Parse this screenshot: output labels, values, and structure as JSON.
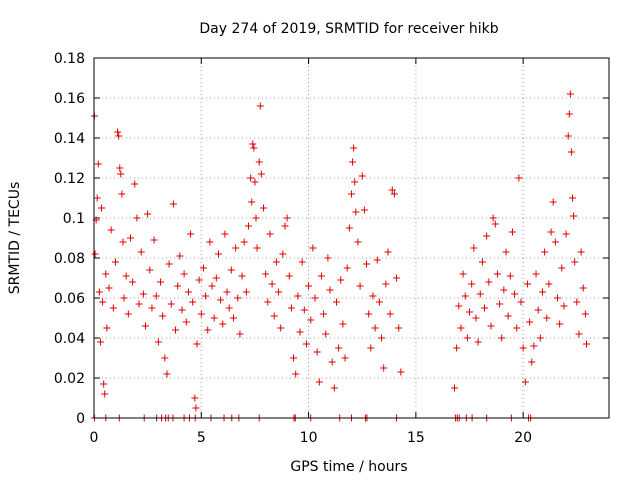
{
  "chart_data": {
    "type": "scatter",
    "title": "Day 274 of 2019, SRMTID for receiver hikb",
    "xlabel": "GPS time / hours",
    "ylabel": "SRMTID / TECUs",
    "xlim": [
      0,
      24
    ],
    "ylim": [
      0,
      0.18
    ],
    "xticks": [
      "0",
      "5",
      "10",
      "15",
      "20"
    ],
    "yticks": [
      "0",
      "0.02",
      "0.04",
      "0.06",
      "0.08",
      "0.1",
      "0.12",
      "0.14",
      "0.16",
      "0.18"
    ],
    "grid": true,
    "marker": "plus",
    "color": "#e00000",
    "series": [
      {
        "points": [
          [
            0.02,
            0.151
          ],
          [
            0.05,
            0.082
          ],
          [
            0.1,
            0.099
          ],
          [
            0.15,
            0.11
          ],
          [
            0.2,
            0.127
          ],
          [
            0.25,
            0.063
          ],
          [
            0.3,
            0.038
          ],
          [
            0.35,
            0.105
          ],
          [
            0.4,
            0.058
          ],
          [
            0.45,
            0.017
          ],
          [
            0.5,
            0.012
          ],
          [
            0.55,
            0.072
          ],
          [
            0.6,
            0.045
          ],
          [
            0.7,
            0.065
          ],
          [
            0.8,
            0.094
          ],
          [
            0.9,
            0.055
          ],
          [
            1.0,
            0.078
          ],
          [
            1.1,
            0.143
          ],
          [
            1.15,
            0.141
          ],
          [
            1.2,
            0.125
          ],
          [
            1.25,
            0.122
          ],
          [
            1.3,
            0.112
          ],
          [
            1.35,
            0.088
          ],
          [
            1.4,
            0.06
          ],
          [
            1.5,
            0.071
          ],
          [
            1.6,
            0.052
          ],
          [
            1.7,
            0.09
          ],
          [
            1.8,
            0.068
          ],
          [
            1.9,
            0.117
          ],
          [
            2.0,
            0.1
          ],
          [
            2.1,
            0.057
          ],
          [
            2.2,
            0.083
          ],
          [
            2.3,
            0.062
          ],
          [
            2.4,
            0.046
          ],
          [
            2.5,
            0.102
          ],
          [
            2.6,
            0.074
          ],
          [
            2.7,
            0.055
          ],
          [
            2.8,
            0.089
          ],
          [
            2.9,
            0.061
          ],
          [
            3.0,
            0.038
          ],
          [
            3.1,
            0.068
          ],
          [
            3.2,
            0.051
          ],
          [
            3.3,
            0.03
          ],
          [
            3.4,
            0.022
          ],
          [
            3.5,
            0.077
          ],
          [
            3.6,
            0.057
          ],
          [
            3.7,
            0.107
          ],
          [
            3.8,
            0.044
          ],
          [
            3.9,
            0.066
          ],
          [
            4.0,
            0.081
          ],
          [
            4.1,
            0.054
          ],
          [
            4.2,
            0.072
          ],
          [
            4.3,
            0.048
          ],
          [
            4.4,
            0.063
          ],
          [
            4.5,
            0.092
          ],
          [
            4.6,
            0.058
          ],
          [
            4.7,
            0.01
          ],
          [
            4.75,
            0.005
          ],
          [
            4.8,
            0.037
          ],
          [
            4.9,
            0.069
          ],
          [
            5.0,
            0.052
          ],
          [
            5.1,
            0.075
          ],
          [
            5.2,
            0.061
          ],
          [
            5.3,
            0.044
          ],
          [
            5.4,
            0.088
          ],
          [
            5.5,
            0.066
          ],
          [
            5.6,
            0.05
          ],
          [
            5.7,
            0.07
          ],
          [
            5.8,
            0.082
          ],
          [
            5.9,
            0.059
          ],
          [
            6.0,
            0.047
          ],
          [
            6.1,
            0.092
          ],
          [
            6.2,
            0.063
          ],
          [
            6.3,
            0.055
          ],
          [
            6.4,
            0.074
          ],
          [
            6.5,
            0.05
          ],
          [
            6.6,
            0.085
          ],
          [
            6.7,
            0.06
          ],
          [
            6.8,
            0.042
          ],
          [
            6.9,
            0.071
          ],
          [
            7.0,
            0.088
          ],
          [
            7.1,
            0.063
          ],
          [
            7.2,
            0.096
          ],
          [
            7.3,
            0.12
          ],
          [
            7.35,
            0.108
          ],
          [
            7.4,
            0.137
          ],
          [
            7.45,
            0.135
          ],
          [
            7.5,
            0.118
          ],
          [
            7.55,
            0.1
          ],
          [
            7.6,
            0.085
          ],
          [
            7.7,
            0.128
          ],
          [
            7.75,
            0.156
          ],
          [
            7.8,
            0.122
          ],
          [
            7.9,
            0.105
          ],
          [
            8.0,
            0.072
          ],
          [
            8.1,
            0.058
          ],
          [
            8.2,
            0.092
          ],
          [
            8.3,
            0.067
          ],
          [
            8.4,
            0.051
          ],
          [
            8.5,
            0.078
          ],
          [
            8.6,
            0.063
          ],
          [
            8.7,
            0.045
          ],
          [
            8.8,
            0.082
          ],
          [
            8.9,
            0.096
          ],
          [
            9.0,
            0.1
          ],
          [
            9.1,
            0.071
          ],
          [
            9.2,
            0.055
          ],
          [
            9.3,
            0.03
          ],
          [
            9.4,
            0.022
          ],
          [
            9.5,
            0.061
          ],
          [
            9.6,
            0.043
          ],
          [
            9.7,
            0.078
          ],
          [
            9.8,
            0.054
          ],
          [
            9.9,
            0.037
          ],
          [
            10.0,
            0.066
          ],
          [
            10.1,
            0.049
          ],
          [
            10.2,
            0.085
          ],
          [
            10.3,
            0.06
          ],
          [
            10.4,
            0.033
          ],
          [
            10.5,
            0.018
          ],
          [
            10.6,
            0.071
          ],
          [
            10.7,
            0.052
          ],
          [
            10.8,
            0.042
          ],
          [
            10.9,
            0.08
          ],
          [
            11.0,
            0.064
          ],
          [
            11.1,
            0.028
          ],
          [
            11.2,
            0.015
          ],
          [
            11.3,
            0.058
          ],
          [
            11.4,
            0.035
          ],
          [
            11.5,
            0.069
          ],
          [
            11.6,
            0.047
          ],
          [
            11.7,
            0.03
          ],
          [
            11.8,
            0.075
          ],
          [
            11.9,
            0.095
          ],
          [
            12.0,
            0.112
          ],
          [
            12.05,
            0.128
          ],
          [
            12.1,
            0.135
          ],
          [
            12.15,
            0.118
          ],
          [
            12.2,
            0.103
          ],
          [
            12.3,
            0.088
          ],
          [
            12.4,
            0.066
          ],
          [
            12.5,
            0.121
          ],
          [
            12.6,
            0.104
          ],
          [
            12.7,
            0.077
          ],
          [
            12.8,
            0.052
          ],
          [
            12.9,
            0.035
          ],
          [
            13.0,
            0.061
          ],
          [
            13.1,
            0.045
          ],
          [
            13.2,
            0.079
          ],
          [
            13.3,
            0.058
          ],
          [
            13.4,
            0.04
          ],
          [
            13.5,
            0.025
          ],
          [
            13.6,
            0.067
          ],
          [
            13.7,
            0.083
          ],
          [
            13.8,
            0.052
          ],
          [
            13.9,
            0.114
          ],
          [
            14.0,
            0.112
          ],
          [
            14.1,
            0.07
          ],
          [
            14.2,
            0.045
          ],
          [
            14.3,
            0.023
          ],
          [
            16.8,
            0.015
          ],
          [
            16.9,
            0.035
          ],
          [
            17.0,
            0.056
          ],
          [
            17.1,
            0.045
          ],
          [
            17.2,
            0.072
          ],
          [
            17.3,
            0.061
          ],
          [
            17.4,
            0.04
          ],
          [
            17.5,
            0.053
          ],
          [
            17.6,
            0.067
          ],
          [
            17.7,
            0.085
          ],
          [
            17.8,
            0.05
          ],
          [
            17.9,
            0.038
          ],
          [
            18.0,
            0.062
          ],
          [
            18.1,
            0.078
          ],
          [
            18.2,
            0.055
          ],
          [
            18.3,
            0.091
          ],
          [
            18.4,
            0.068
          ],
          [
            18.5,
            0.046
          ],
          [
            18.6,
            0.1
          ],
          [
            18.7,
            0.097
          ],
          [
            18.8,
            0.072
          ],
          [
            18.9,
            0.057
          ],
          [
            19.0,
            0.04
          ],
          [
            19.1,
            0.064
          ],
          [
            19.2,
            0.083
          ],
          [
            19.3,
            0.051
          ],
          [
            19.4,
            0.071
          ],
          [
            19.5,
            0.093
          ],
          [
            19.6,
            0.062
          ],
          [
            19.7,
            0.045
          ],
          [
            19.8,
            0.12
          ],
          [
            19.9,
            0.058
          ],
          [
            20.0,
            0.035
          ],
          [
            20.1,
            0.018
          ],
          [
            20.2,
            0.067
          ],
          [
            20.3,
            0.048
          ],
          [
            20.4,
            0.028
          ],
          [
            20.5,
            0.036
          ],
          [
            20.6,
            0.072
          ],
          [
            20.7,
            0.054
          ],
          [
            20.8,
            0.04
          ],
          [
            20.9,
            0.063
          ],
          [
            21.0,
            0.083
          ],
          [
            21.1,
            0.05
          ],
          [
            21.2,
            0.067
          ],
          [
            21.3,
            0.093
          ],
          [
            21.4,
            0.108
          ],
          [
            21.5,
            0.088
          ],
          [
            21.6,
            0.06
          ],
          [
            21.7,
            0.047
          ],
          [
            21.8,
            0.075
          ],
          [
            21.9,
            0.056
          ],
          [
            22.0,
            0.092
          ],
          [
            22.1,
            0.141
          ],
          [
            22.15,
            0.152
          ],
          [
            22.2,
            0.162
          ],
          [
            22.25,
            0.133
          ],
          [
            22.3,
            0.11
          ],
          [
            22.35,
            0.101
          ],
          [
            22.4,
            0.078
          ],
          [
            22.5,
            0.058
          ],
          [
            22.6,
            0.042
          ],
          [
            22.7,
            0.083
          ],
          [
            22.8,
            0.065
          ],
          [
            22.9,
            0.052
          ],
          [
            22.95,
            0.037
          ]
        ]
      }
    ],
    "zero_points_x": [
      0.02,
      0.55,
      1.18,
      2.34,
      2.92,
      3.15,
      3.34,
      3.46,
      3.68,
      4.2,
      4.45,
      4.72,
      5.45,
      6.06,
      6.42,
      6.75,
      7.7,
      9.32,
      9.38,
      10.1,
      11.45,
      12.0,
      12.65,
      12.72,
      14.1,
      16.85,
      16.93,
      17.02,
      17.35,
      17.62,
      18.3,
      19.45,
      20.25,
      20.35
    ]
  }
}
